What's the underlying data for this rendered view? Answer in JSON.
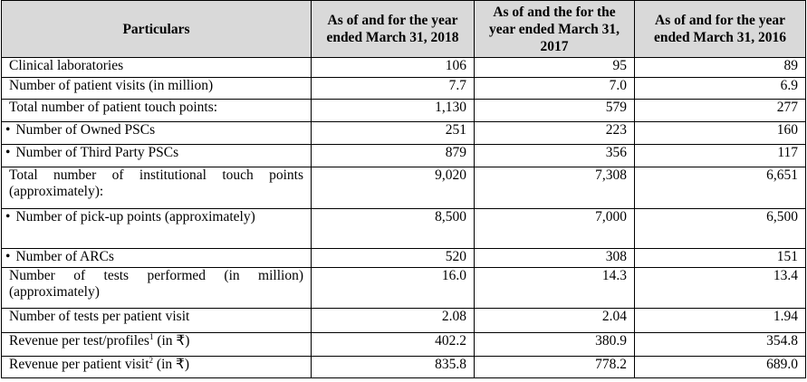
{
  "headers": [
    "Particulars",
    "As of and for the year ended March 31, 2018",
    "As of and the for the year ended March 31, 2017",
    "As of and for the year ended March 31, 2016"
  ],
  "rows": [
    {
      "label": "Clinical laboratories",
      "sup": "",
      "suffix": "",
      "bullet": false,
      "values": [
        "106",
        "95",
        "89"
      ]
    },
    {
      "label": "Number of patient visits (in million)",
      "sup": "",
      "suffix": "",
      "bullet": false,
      "values": [
        "7.7",
        "7.0",
        "6.9"
      ]
    },
    {
      "label": "Total number of patient touch points:",
      "sup": "",
      "suffix": "",
      "bullet": false,
      "values": [
        "1,130",
        "579",
        "277"
      ]
    },
    {
      "label": "Number of Owned PSCs",
      "sup": "",
      "suffix": "",
      "bullet": true,
      "values": [
        "251",
        "223",
        "160"
      ]
    },
    {
      "label": "Number of Third Party PSCs",
      "sup": "",
      "suffix": "",
      "bullet": true,
      "values": [
        "879",
        "356",
        "117"
      ]
    },
    {
      "label": "Total number of institutional touch points (approximately):",
      "sup": "",
      "suffix": "",
      "bullet": false,
      "values": [
        "9,020",
        "7,308",
        "6,651"
      ]
    },
    {
      "label": "Number of pick-up points (approximately)",
      "sup": "",
      "suffix": "",
      "bullet": true,
      "values": [
        "8,500",
        "7,000",
        "6,500"
      ]
    },
    {
      "label": "Number of ARCs",
      "sup": "",
      "suffix": "",
      "bullet": true,
      "values": [
        "520",
        "308",
        "151"
      ]
    },
    {
      "label": "Number of tests performed (in million) (approximately)",
      "sup": "",
      "suffix": "",
      "bullet": false,
      "values": [
        "16.0",
        "14.3",
        "13.4"
      ]
    },
    {
      "label": "Number of tests per patient visit",
      "sup": "",
      "suffix": "",
      "bullet": false,
      "values": [
        "2.08",
        "2.04",
        "1.94"
      ]
    },
    {
      "label": "Revenue per test/profiles",
      "sup": "1",
      "suffix": " (in ₹)",
      "bullet": false,
      "values": [
        "402.2",
        "380.9",
        "354.8"
      ]
    },
    {
      "label": "Revenue per patient visit",
      "sup": "2",
      "suffix": " (in ₹)",
      "bullet": false,
      "values": [
        "835.8",
        "778.2",
        "689.0"
      ]
    }
  ],
  "bullet_glyph": "•"
}
